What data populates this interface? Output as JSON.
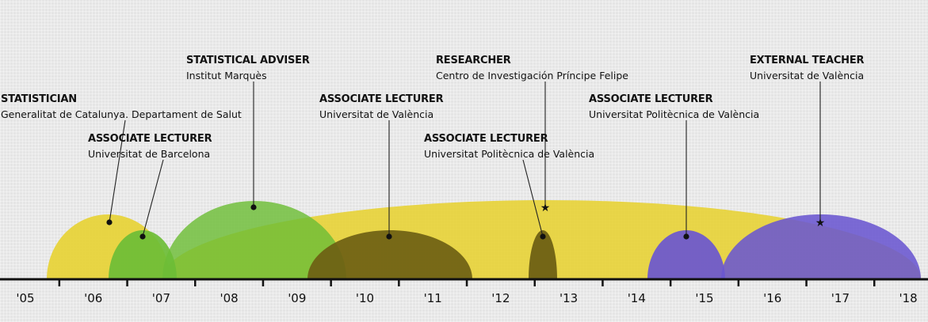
{
  "timeline": {
    "years": [
      "'05",
      "'06",
      "'07",
      "'08",
      "'09",
      "'10",
      "'11",
      "'12",
      "'13",
      "'14",
      "'15",
      "'16",
      "'17",
      "'18"
    ]
  },
  "colors": {
    "yellow": "#e7d33a",
    "green": "#6cbd36",
    "olive": "#6e6014",
    "purple": "#6a56d0",
    "axis": "#111111"
  },
  "positions": [
    {
      "role": "STATISTICIAN",
      "org": "Generalitat de Catalunya. Departament de Salut",
      "start": "'05",
      "end": "'07",
      "color": "yellow",
      "marker": "dot"
    },
    {
      "role": "ASSOCIATE LECTURER",
      "org": "Universitat de Barcelona",
      "start": "'06",
      "end": "'07",
      "color": "green",
      "marker": "dot"
    },
    {
      "role": "STATISTICAL ADVISER",
      "org": "Institut Marquès",
      "start": "'07",
      "end": "'09",
      "color": "green",
      "marker": "dot"
    },
    {
      "role": "ASSOCIATE LECTURER",
      "org": "Universitat de València",
      "start": "'09",
      "end": "'12",
      "color": "olive",
      "marker": "dot"
    },
    {
      "role": "ASSOCIATE LECTURER",
      "org": "Universitat Politècnica de València",
      "start": "'12",
      "end": "'13",
      "color": "olive",
      "marker": "dot"
    },
    {
      "role": "RESEARCHER",
      "org": "Centro de Investigación Príncipe Felipe",
      "start": "'07",
      "end": "'18",
      "color": "yellow",
      "marker": "star"
    },
    {
      "role": "ASSOCIATE LECTURER",
      "org": "Universitat Politècnica de València",
      "start": "'14",
      "end": "'15",
      "color": "purple",
      "marker": "dot"
    },
    {
      "role": "EXTERNAL TEACHER",
      "org": "Universitat de València",
      "start": "'15",
      "end": "'18",
      "color": "purple",
      "marker": "star"
    }
  ]
}
